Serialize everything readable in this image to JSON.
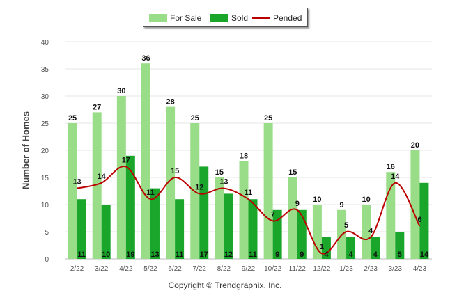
{
  "chart_data": {
    "type": "bar",
    "ylabel": "Number of Homes",
    "ylim": [
      0,
      40
    ],
    "yticks": [
      0,
      5,
      10,
      15,
      20,
      25,
      30,
      35,
      40
    ],
    "categories": [
      "2/22",
      "3/22",
      "4/22",
      "5/22",
      "6/22",
      "7/22",
      "8/22",
      "9/22",
      "10/22",
      "11/22",
      "12/22",
      "1/23",
      "2/23",
      "3/23",
      "4/23"
    ],
    "series": [
      {
        "name": "For Sale",
        "type": "bar",
        "color": "#99dd88",
        "values": [
          25,
          27,
          30,
          36,
          28,
          25,
          15,
          18,
          25,
          15,
          10,
          9,
          10,
          16,
          20
        ]
      },
      {
        "name": "Sold",
        "type": "bar",
        "color": "#1aa62a",
        "values": [
          11,
          10,
          19,
          13,
          11,
          17,
          12,
          11,
          9,
          9,
          4,
          4,
          4,
          5,
          14
        ]
      },
      {
        "name": "Pended",
        "type": "line",
        "color": "#bb0000",
        "values": [
          13,
          14,
          17,
          11,
          15,
          12,
          13,
          11,
          7,
          9,
          1,
          5,
          4,
          14,
          6
        ]
      }
    ],
    "grid": true,
    "legend": "top-center"
  },
  "legend": {
    "items": [
      {
        "label": "For Sale",
        "color": "#99dd88"
      },
      {
        "label": "Sold",
        "color": "#1aa62a"
      },
      {
        "label": "Pended",
        "color": "#bb0000"
      }
    ]
  },
  "footer": {
    "copyright": "Copyright © Trendgraphix, Inc."
  }
}
